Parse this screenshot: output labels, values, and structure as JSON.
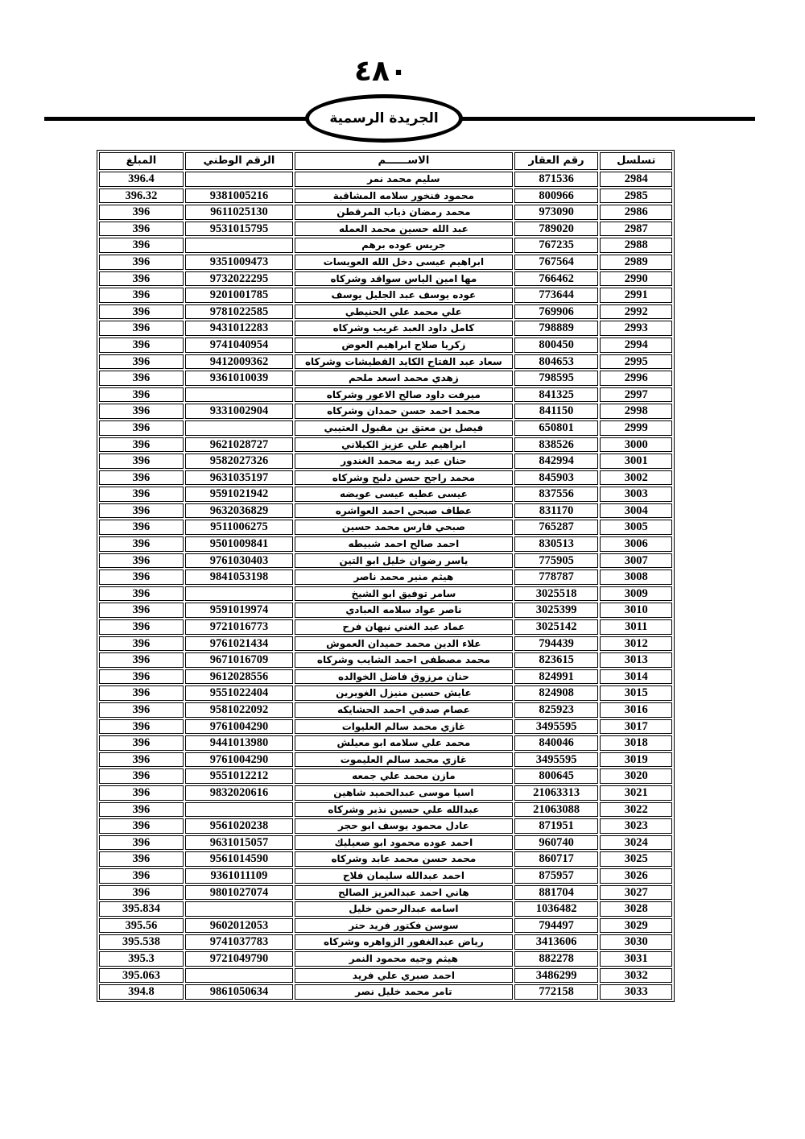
{
  "page_number": "٤٨٠",
  "banner": {
    "title": "الجريدة الرسمية"
  },
  "table": {
    "headers": {
      "serial": "تسلسل",
      "property_no": "رقم العقار",
      "name": "الاســــــم",
      "national_id": "الرقم الوطني",
      "amount": "المبلغ"
    },
    "rows": [
      {
        "serial": "2984",
        "property_no": "871536",
        "name": "سليم محمد نمر",
        "national_id": "",
        "amount": "396.4"
      },
      {
        "serial": "2985",
        "property_no": "800966",
        "name": "محمود فنخور سلامه المشاقبة",
        "national_id": "9381005216",
        "amount": "396.32"
      },
      {
        "serial": "2986",
        "property_no": "973090",
        "name": "محمد رمضان ذياب المرقطن",
        "national_id": "9611025130",
        "amount": "396"
      },
      {
        "serial": "2987",
        "property_no": "789020",
        "name": "عبد الله حسين محمد العمله",
        "national_id": "9531015795",
        "amount": "396"
      },
      {
        "serial": "2988",
        "property_no": "767235",
        "name": "جريس عوده برهم",
        "national_id": "",
        "amount": "396"
      },
      {
        "serial": "2989",
        "property_no": "767564",
        "name": "ابراهيم عيسى دخل الله العويسات",
        "national_id": "9351009473",
        "amount": "396"
      },
      {
        "serial": "2990",
        "property_no": "766462",
        "name": "مها امين الياس سواقد وشركاه",
        "national_id": "9732022295",
        "amount": "396"
      },
      {
        "serial": "2991",
        "property_no": "773644",
        "name": "عوده يوسف عبد الجليل يوسف",
        "national_id": "9201001785",
        "amount": "396"
      },
      {
        "serial": "2992",
        "property_no": "769906",
        "name": "علي محمد علي الحنيطي",
        "national_id": "9781022585",
        "amount": "396"
      },
      {
        "serial": "2993",
        "property_no": "798889",
        "name": "كامل داود العبد غريب وشركاه",
        "national_id": "9431012283",
        "amount": "396"
      },
      {
        "serial": "2994",
        "property_no": "800450",
        "name": "زكريا صلاح ابراهيم العوض",
        "national_id": "9741040954",
        "amount": "396"
      },
      {
        "serial": "2995",
        "property_no": "804653",
        "name": "سعاد عبد الفتاح الكايد القطيشات وشركاه",
        "national_id": "9412009362",
        "amount": "396"
      },
      {
        "serial": "2996",
        "property_no": "798595",
        "name": "زهدي محمد اسعد ملحم",
        "national_id": "9361010039",
        "amount": "396"
      },
      {
        "serial": "2997",
        "property_no": "841325",
        "name": "ميرفت داود صالح الاعور وشركاه",
        "national_id": "",
        "amount": "396"
      },
      {
        "serial": "2998",
        "property_no": "841150",
        "name": "محمد احمد حسن حمدان وشركاه",
        "national_id": "9331002904",
        "amount": "396"
      },
      {
        "serial": "2999",
        "property_no": "650801",
        "name": "فيصل بن معتق بن مقبول العتيبي",
        "national_id": "",
        "amount": "396"
      },
      {
        "serial": "3000",
        "property_no": "838526",
        "name": "ابراهيم علي عزيز الكيلاني",
        "national_id": "9621028727",
        "amount": "396"
      },
      {
        "serial": "3001",
        "property_no": "842994",
        "name": "حنان عبد ربه محمد الغندور",
        "national_id": "9582027326",
        "amount": "396"
      },
      {
        "serial": "3002",
        "property_no": "845903",
        "name": "محمد راجح حسن دلبح وشركاه",
        "national_id": "9631035197",
        "amount": "396"
      },
      {
        "serial": "3003",
        "property_no": "837556",
        "name": "عيسى عطيه عيسى عويضه",
        "national_id": "9591021942",
        "amount": "396"
      },
      {
        "serial": "3004",
        "property_no": "831170",
        "name": "عطاف صبحي احمد العواشره",
        "national_id": "9632036829",
        "amount": "396"
      },
      {
        "serial": "3005",
        "property_no": "765287",
        "name": "صبحي فارس محمد حسين",
        "national_id": "9511006275",
        "amount": "396"
      },
      {
        "serial": "3006",
        "property_no": "830513",
        "name": "احمد صالح احمد شبيطه",
        "national_id": "9501009841",
        "amount": "396"
      },
      {
        "serial": "3007",
        "property_no": "775905",
        "name": "ياسر رضوان خليل ابو التين",
        "national_id": "9761030403",
        "amount": "396"
      },
      {
        "serial": "3008",
        "property_no": "778787",
        "name": "هيثم منير محمد ناصر",
        "national_id": "9841053198",
        "amount": "396"
      },
      {
        "serial": "3009",
        "property_no": "3025518",
        "name": "سامر توفيق ابو الشيخ",
        "national_id": "",
        "amount": "396"
      },
      {
        "serial": "3010",
        "property_no": "3025399",
        "name": "ناصر عواد سلامه العبادي",
        "national_id": "9591019974",
        "amount": "396"
      },
      {
        "serial": "3011",
        "property_no": "3025142",
        "name": "عماد عبد الغني نبهان فرح",
        "national_id": "9721016773",
        "amount": "396"
      },
      {
        "serial": "3012",
        "property_no": "794439",
        "name": "علاء الدين محمد حميدان العموش",
        "national_id": "9761021434",
        "amount": "396"
      },
      {
        "serial": "3013",
        "property_no": "823615",
        "name": "محمد مصطفى احمد الشايب وشركاه",
        "national_id": "9671016709",
        "amount": "396"
      },
      {
        "serial": "3014",
        "property_no": "824991",
        "name": "حنان مرزوق فاضل الخوالده",
        "national_id": "9612028556",
        "amount": "396"
      },
      {
        "serial": "3015",
        "property_no": "824908",
        "name": "عايش حسين منيزل الغويرين",
        "national_id": "9551022404",
        "amount": "396"
      },
      {
        "serial": "3016",
        "property_no": "825923",
        "name": "عصام صدقي احمد الحشايكه",
        "national_id": "9581022092",
        "amount": "396"
      },
      {
        "serial": "3017",
        "property_no": "3495595",
        "name": "غازي محمد سالم العليوات",
        "national_id": "9761004290",
        "amount": "396"
      },
      {
        "serial": "3018",
        "property_no": "840046",
        "name": "محمد علي سلامه ابو معيلش",
        "national_id": "9441013980",
        "amount": "396"
      },
      {
        "serial": "3019",
        "property_no": "3495595",
        "name": "غازي  محمد سالم العليموت",
        "national_id": "9761004290",
        "amount": "396"
      },
      {
        "serial": "3020",
        "property_no": "800645",
        "name": "مازن محمد علي جمعه",
        "national_id": "9551012212",
        "amount": "396"
      },
      {
        "serial": "3021",
        "property_no": "21063313",
        "name": "اسيا موسى عبدالحميد شاهين",
        "national_id": "9832020616",
        "amount": "396"
      },
      {
        "serial": "3022",
        "property_no": "21063088",
        "name": "عبدالله علي حسين نذير وشركاه",
        "national_id": "",
        "amount": "396"
      },
      {
        "serial": "3023",
        "property_no": "871951",
        "name": "عادل محمود يوسف ابو حجر",
        "national_id": "9561020238",
        "amount": "396"
      },
      {
        "serial": "3024",
        "property_no": "960740",
        "name": "احمد عوده محمود ابو صعيليك",
        "national_id": "9631015057",
        "amount": "396"
      },
      {
        "serial": "3025",
        "property_no": "860717",
        "name": "محمد حسن محمد عابد وشركاه",
        "national_id": "9561014590",
        "amount": "396"
      },
      {
        "serial": "3026",
        "property_no": "875957",
        "name": "احمد عبدالله سليمان فلاح",
        "national_id": "9361011109",
        "amount": "396"
      },
      {
        "serial": "3027",
        "property_no": "881704",
        "name": "هاني احمد عبدالعزيز الصالح",
        "national_id": "9801027074",
        "amount": "396"
      },
      {
        "serial": "3028",
        "property_no": "1036482",
        "name": "اسامه عبدالرحمن خليل",
        "national_id": "",
        "amount": "395.834"
      },
      {
        "serial": "3029",
        "property_no": "794497",
        "name": "سوسن فكتور فريد حتر",
        "national_id": "9602012053",
        "amount": "395.56"
      },
      {
        "serial": "3030",
        "property_no": "3413606",
        "name": "رياض عبدالغفور الزواهره وشركاه",
        "national_id": "9741037783",
        "amount": "395.538"
      },
      {
        "serial": "3031",
        "property_no": "882278",
        "name": "هيثم وجيه محمود النمر",
        "national_id": "9721049790",
        "amount": "395.3"
      },
      {
        "serial": "3032",
        "property_no": "3486299",
        "name": "احمد صبري علي فريد",
        "national_id": "",
        "amount": "395.063"
      },
      {
        "serial": "3033",
        "property_no": "772158",
        "name": "تامر محمد خليل نصر",
        "national_id": "9861050634",
        "amount": "394.8"
      }
    ]
  }
}
